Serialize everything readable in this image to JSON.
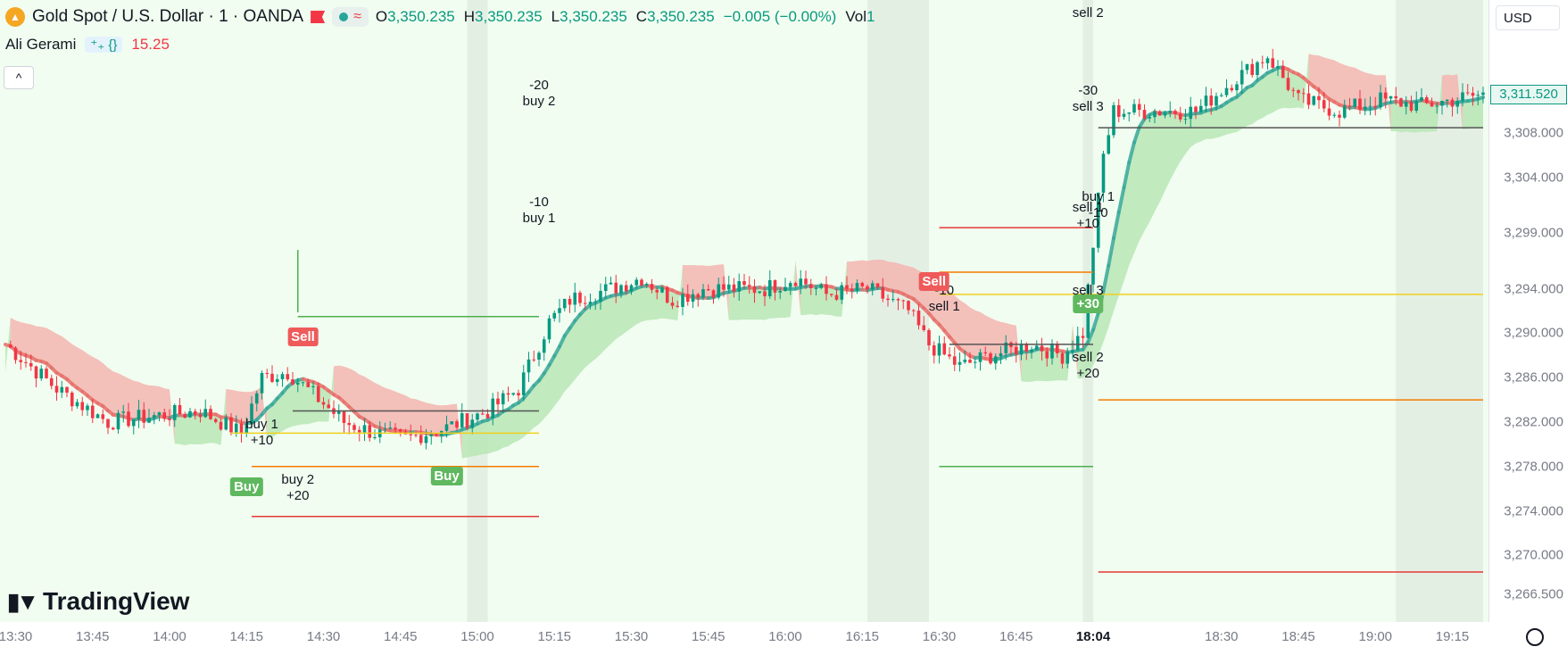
{
  "header": {
    "symbol_title": "Gold Spot / U.S. Dollar · 1 · OANDA",
    "ohlc": [
      {
        "key": "O",
        "value": "3,350.235"
      },
      {
        "key": "H",
        "value": "3,350.235"
      },
      {
        "key": "L",
        "value": "3,350.235"
      },
      {
        "key": "C",
        "value": "3,350.235"
      }
    ],
    "change": "−0.005 (−0.00%)",
    "vol_label": "Vol",
    "vol_value": "1"
  },
  "indicator": {
    "name": "Ali Gerami",
    "icons": "⁺₊ {}",
    "value": "15.25"
  },
  "currency": "USD",
  "branding": "TradingView",
  "colors": {
    "up": "#089981",
    "down": "#f23645",
    "cloud_up": "#b9e6b5",
    "cloud_down": "#f3b5b0",
    "session": "#e4efe4"
  },
  "chart_data": {
    "type": "candlestick",
    "symbol": "XAUUSD",
    "timeframe": "1",
    "last_price": "3,311.520",
    "price_ticks": [
      "3,308.000",
      "3,304.000",
      "3,299.000",
      "3,294.000",
      "3,290.000",
      "3,286.000",
      "3,282.000",
      "3,278.000",
      "3,274.000",
      "3,270.000",
      "3,266.500"
    ],
    "price_tick_values": [
      3308,
      3304,
      3299,
      3294,
      3290,
      3286,
      3282,
      3278,
      3274,
      3270,
      3266.5
    ],
    "time_ticks": [
      "13:30",
      "13:45",
      "14:00",
      "14:15",
      "14:30",
      "14:45",
      "15:00",
      "15:15",
      "15:30",
      "15:45",
      "16:00",
      "16:15",
      "16:30",
      "16:45",
      "18:04",
      "18:30",
      "18:45",
      "19:00",
      "19:15"
    ],
    "time_tick_index": [
      2,
      17,
      32,
      47,
      62,
      77,
      92,
      107,
      122,
      137,
      152,
      167,
      182,
      197,
      212,
      237,
      252,
      267,
      282
    ],
    "highlight_tick": "18:04",
    "ylim": [
      3264,
      3320
    ],
    "price_series": [
      [
        0,
        3289
      ],
      [
        10,
        3285
      ],
      [
        20,
        3282
      ],
      [
        28,
        3282.5
      ],
      [
        38,
        3283
      ],
      [
        46,
        3281
      ],
      [
        50,
        3286
      ],
      [
        55,
        3286.5
      ],
      [
        60,
        3284.5
      ],
      [
        66,
        3282
      ],
      [
        72,
        3281
      ],
      [
        78,
        3280.5
      ],
      [
        86,
        3281.5
      ],
      [
        94,
        3283
      ],
      [
        100,
        3285
      ],
      [
        106,
        3291
      ],
      [
        110,
        3293
      ],
      [
        118,
        3294
      ],
      [
        124,
        3295
      ],
      [
        130,
        3293
      ],
      [
        136,
        3294
      ],
      [
        142,
        3294
      ],
      [
        148,
        3294
      ],
      [
        154,
        3295
      ],
      [
        160,
        3293.5
      ],
      [
        168,
        3294
      ],
      [
        176,
        3292
      ],
      [
        180,
        3289
      ],
      [
        186,
        3287
      ],
      [
        192,
        3288
      ],
      [
        200,
        3289
      ],
      [
        206,
        3288
      ],
      [
        210,
        3290
      ],
      [
        212,
        3298
      ],
      [
        214,
        3306
      ],
      [
        216,
        3310
      ],
      [
        224,
        3310
      ],
      [
        232,
        3310
      ],
      [
        240,
        3313
      ],
      [
        246,
        3315
      ],
      [
        252,
        3311
      ],
      [
        260,
        3310
      ],
      [
        268,
        3311
      ],
      [
        276,
        3310.5
      ],
      [
        282,
        3311
      ],
      [
        288,
        3311.5
      ]
    ],
    "session_bands": [
      [
        90,
        94
      ],
      [
        168,
        180
      ],
      [
        210,
        212
      ],
      [
        271,
        288
      ]
    ],
    "annotations": [
      {
        "text": "buy 1\n+10",
        "i": 50,
        "price": 3282.5
      },
      {
        "text": "buy 2\n+20",
        "i": 57,
        "price": 3277.5
      },
      {
        "text": "-20\nbuy 2",
        "i": 104,
        "price": 3313
      },
      {
        "text": "-10\nbuy 1",
        "i": 104,
        "price": 3302.5
      },
      {
        "text": "sell 2",
        "i": 211,
        "price": 3319.5
      },
      {
        "text": "-30\nsell 3",
        "i": 211,
        "price": 3312.5
      },
      {
        "text": "buy 1\n-10",
        "i": 213,
        "price": 3303
      },
      {
        "text": "sell 1\n+10",
        "i": 211,
        "price": 3302
      },
      {
        "text": "-10\nsell 1",
        "i": 183,
        "price": 3294.5
      },
      {
        "text": "sell 3",
        "i": 211,
        "price": 3294.5
      },
      {
        "text": "sell 2\n+20",
        "i": 211,
        "price": 3288.5
      }
    ],
    "signal_badges": [
      {
        "text": "Buy",
        "type": "buy",
        "i": 47,
        "price": 3277
      },
      {
        "text": "Sell",
        "type": "sell",
        "i": 58,
        "price": 3290.5
      },
      {
        "text": "Buy",
        "type": "buy",
        "i": 86,
        "price": 3278
      },
      {
        "text": "Sell",
        "type": "sell",
        "i": 181,
        "price": 3295.5
      },
      {
        "text": "+30",
        "type": "g",
        "i": 211,
        "price": 3293.5
      }
    ],
    "levels": [
      {
        "price": 3291.5,
        "i0": 57,
        "i1": 104,
        "color": "#4caf50"
      },
      {
        "price": 3283,
        "i0": 56,
        "i1": 104,
        "color": "#555555"
      },
      {
        "price": 3281,
        "i0": 44,
        "i1": 104,
        "color": "#f0d020"
      },
      {
        "price": 3278,
        "i0": 48,
        "i1": 104,
        "color": "#f57c00"
      },
      {
        "price": 3273.5,
        "i0": 48,
        "i1": 104,
        "color": "#e53935"
      },
      {
        "price": 3297.5,
        "i0": 57,
        "i1": 57,
        "color": "#4caf50"
      },
      {
        "price": 3299.5,
        "i0": 182,
        "i1": 212,
        "color": "#e53935"
      },
      {
        "price": 3295.5,
        "i0": 182,
        "i1": 212,
        "color": "#f57c00"
      },
      {
        "price": 3293.5,
        "i0": 182,
        "i1": 288,
        "color": "#f0d020"
      },
      {
        "price": 3289,
        "i0": 184,
        "i1": 212,
        "color": "#555555"
      },
      {
        "price": 3278,
        "i0": 182,
        "i1": 212,
        "color": "#4caf50"
      },
      {
        "price": 3284,
        "i0": 213,
        "i1": 288,
        "color": "#f57c00"
      },
      {
        "price": 3268.5,
        "i0": 213,
        "i1": 288,
        "color": "#e53935"
      },
      {
        "price": 3308.5,
        "i0": 213,
        "i1": 288,
        "color": "#555555"
      }
    ]
  }
}
